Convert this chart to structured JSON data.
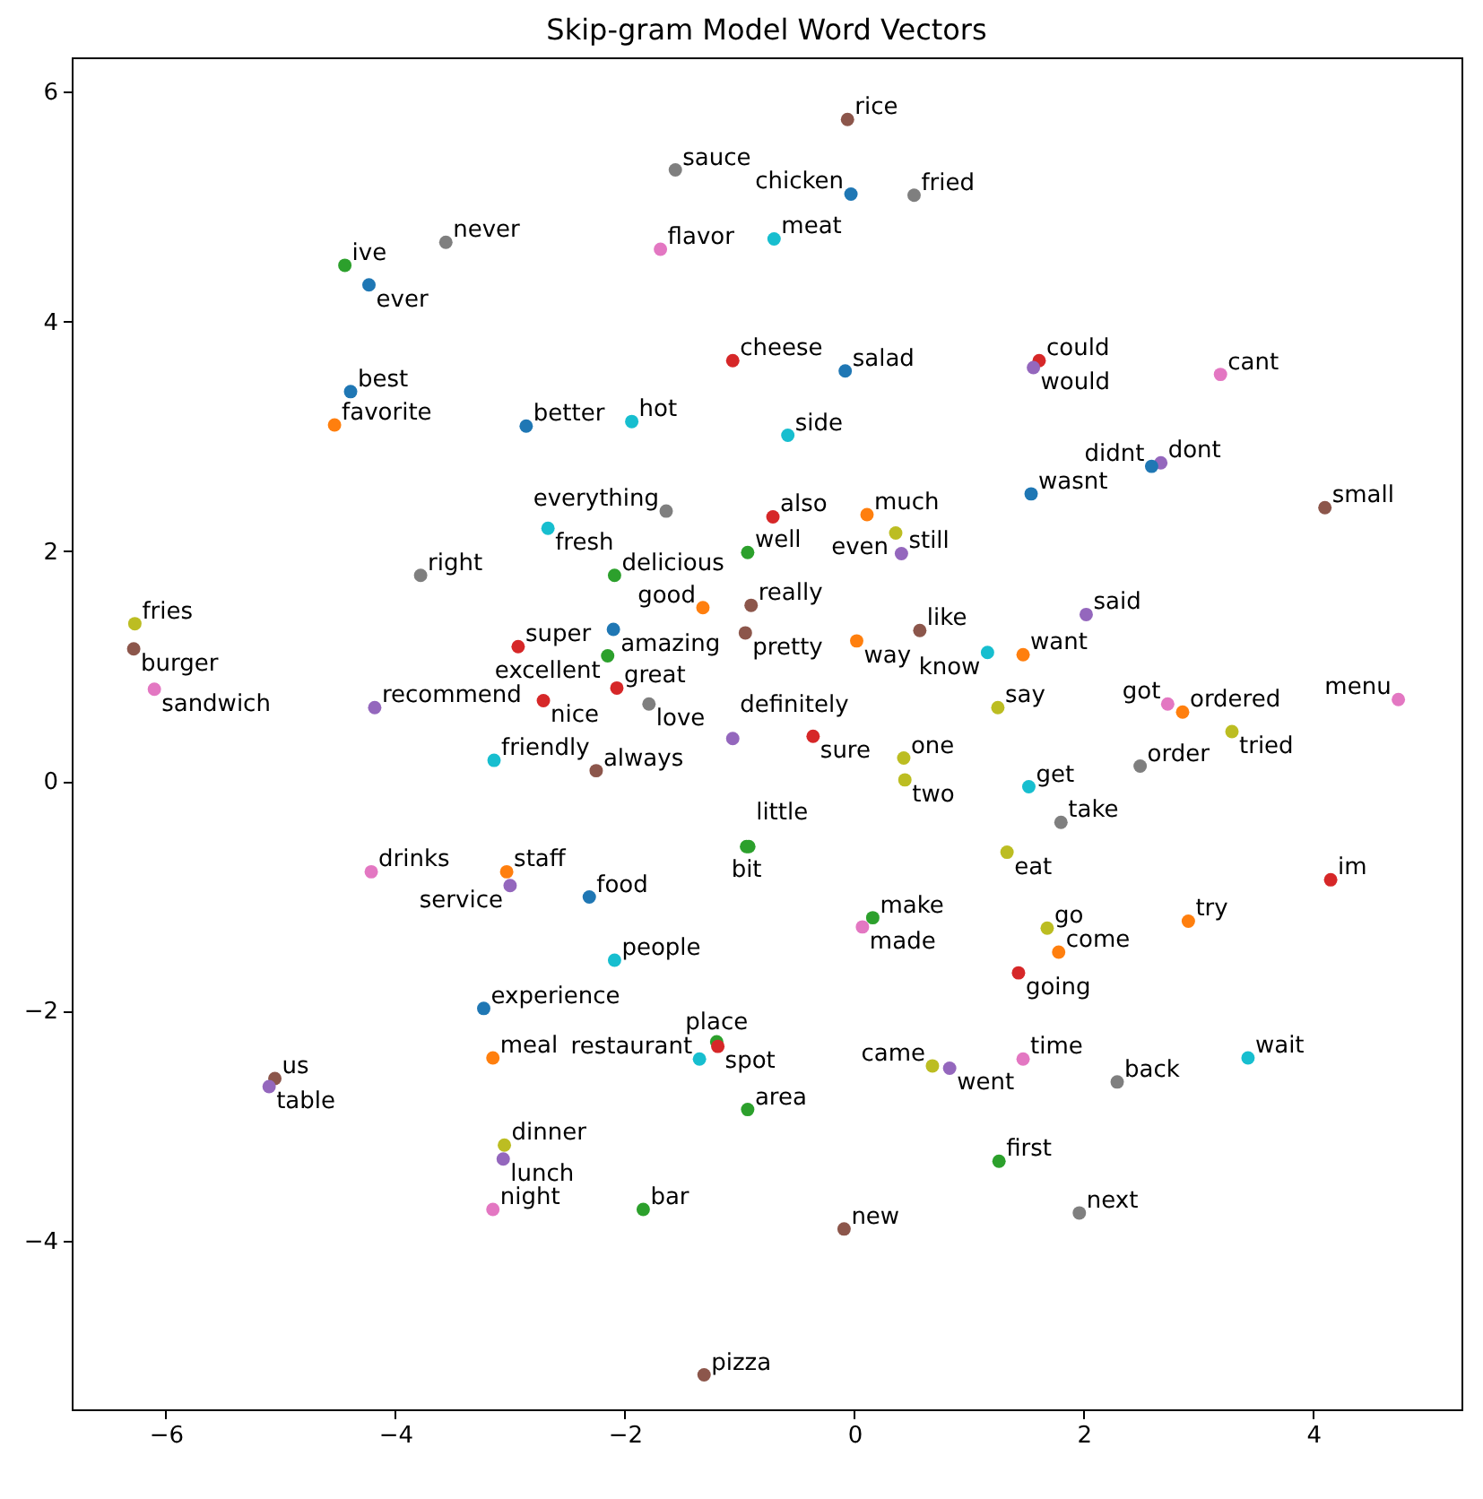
{
  "chart_data": {
    "type": "scatter",
    "title": "Skip-gram Model Word Vectors",
    "x": [
      -0.06,
      -1.56,
      -0.03,
      0.52,
      -3.56,
      -0.7,
      -1.69,
      -4.44,
      -4.23,
      -1.06,
      -0.08,
      1.61,
      1.56,
      3.19,
      -4.39,
      -4.53,
      -2.86,
      -1.94,
      -0.58,
      2.67,
      2.59,
      1.54,
      4.1,
      -1.64,
      -0.71,
      0.11,
      0.36,
      0.41,
      -2.67,
      -0.93,
      -3.78,
      -2.09,
      -1.32,
      -0.9,
      -0.95,
      -2.1,
      -2.15,
      -2.93,
      0.02,
      0.57,
      1.16,
      1.47,
      2.02,
      -6.27,
      -6.28,
      -6.1,
      -4.18,
      -2.71,
      -2.07,
      -1.79,
      1.25,
      2.73,
      2.86,
      4.74,
      3.29,
      -3.14,
      -2.25,
      -1.06,
      -0.36,
      0.43,
      0.44,
      2.49,
      1.52,
      1.8,
      1.33,
      -0.94,
      -0.92,
      -4.21,
      -3.03,
      -3.0,
      -2.31,
      0.16,
      0.07,
      1.68,
      1.78,
      1.43,
      2.91,
      4.15,
      -2.09,
      -3.23,
      -3.15,
      -1.2,
      -1.19,
      -1.35,
      -0.93,
      0.68,
      0.83,
      1.47,
      2.29,
      3.43,
      -5.05,
      -5.1,
      -3.05,
      -3.06,
      -3.15,
      -1.84,
      -0.09,
      1.26,
      1.96,
      -1.31
    ],
    "values": [
      5.76,
      5.32,
      5.11,
      5.1,
      4.69,
      4.72,
      4.63,
      4.49,
      4.32,
      3.66,
      3.57,
      3.66,
      3.6,
      3.54,
      3.39,
      3.1,
      3.09,
      3.13,
      3.01,
      2.77,
      2.74,
      2.5,
      2.38,
      2.35,
      2.3,
      2.32,
      2.16,
      1.98,
      2.2,
      1.99,
      1.79,
      1.79,
      1.51,
      1.53,
      1.29,
      1.32,
      1.09,
      1.17,
      1.22,
      1.31,
      1.12,
      1.1,
      1.45,
      1.37,
      1.15,
      0.8,
      0.64,
      0.7,
      0.81,
      0.67,
      0.64,
      0.67,
      0.6,
      0.71,
      0.43,
      0.18,
      0.09,
      0.37,
      0.39,
      0.2,
      0.01,
      0.13,
      -0.05,
      -0.36,
      -0.62,
      -0.57,
      -0.57,
      -0.79,
      -0.79,
      -0.91,
      -1.01,
      -1.19,
      -1.27,
      -1.28,
      -1.49,
      -1.67,
      -1.22,
      -0.86,
      -1.56,
      -1.98,
      -2.41,
      -2.27,
      -2.31,
      -2.42,
      -2.86,
      -2.48,
      -2.5,
      -2.42,
      -2.62,
      -2.41,
      -2.59,
      -2.66,
      -3.17,
      -3.29,
      -3.73,
      -3.73,
      -3.9,
      -3.31,
      -3.76,
      -5.17
    ],
    "value_labels": [
      "rice",
      "sauce",
      "chicken",
      "fried",
      "never",
      "meat",
      "flavor",
      "ive",
      "ever",
      "cheese",
      "salad",
      "could",
      "would",
      "cant",
      "best",
      "favorite",
      "better",
      "hot",
      "side",
      "dont",
      "didnt",
      "wasnt",
      "small",
      "everything",
      "also",
      "much",
      "even",
      "still",
      "fresh",
      "well",
      "right",
      "delicious",
      "good",
      "really",
      "pretty",
      "amazing",
      "excellent",
      "super",
      "way",
      "like",
      "know",
      "want",
      "said",
      "fries",
      "burger",
      "sandwich",
      "recommend",
      "nice",
      "great",
      "love",
      "say",
      "got",
      "ordered",
      "menu",
      "tried",
      "friendly",
      "always",
      "definitely",
      "sure",
      "one",
      "two",
      "order",
      "get",
      "take",
      "eat",
      "bit",
      "little",
      "drinks",
      "staff",
      "service",
      "food",
      "make",
      "made",
      "go",
      "come",
      "going",
      "try",
      "im",
      "people",
      "experience",
      "meal",
      "place",
      "spot",
      "restaurant",
      "area",
      "came",
      "went",
      "time",
      "back",
      "wait",
      "us",
      "table",
      "dinner",
      "lunch",
      "night",
      "bar",
      "new",
      "first",
      "next",
      "pizza"
    ],
    "colors": [
      "#8c564b",
      "#7f7f7f",
      "#1f77b4",
      "#7f7f7f",
      "#7f7f7f",
      "#17becf",
      "#e377c2",
      "#2ca02c",
      "#1f77b4",
      "#d62728",
      "#1f77b4",
      "#d62728",
      "#9467bd",
      "#e377c2",
      "#1f77b4",
      "#ff7f0e",
      "#1f77b4",
      "#17becf",
      "#17becf",
      "#9467bd",
      "#1f77b4",
      "#1f77b4",
      "#8c564b",
      "#7f7f7f",
      "#d62728",
      "#ff7f0e",
      "#bcbd22",
      "#9467bd",
      "#17becf",
      "#2ca02c",
      "#7f7f7f",
      "#2ca02c",
      "#ff7f0e",
      "#8c564b",
      "#8c564b",
      "#1f77b4",
      "#2ca02c",
      "#d62728",
      "#ff7f0e",
      "#8c564b",
      "#17becf",
      "#ff7f0e",
      "#9467bd",
      "#bcbd22",
      "#8c564b",
      "#e377c2",
      "#9467bd",
      "#d62728",
      "#d62728",
      "#7f7f7f",
      "#bcbd22",
      "#e377c2",
      "#ff7f0e",
      "#e377c2",
      "#bcbd22",
      "#17becf",
      "#8c564b",
      "#9467bd",
      "#d62728",
      "#bcbd22",
      "#bcbd22",
      "#7f7f7f",
      "#17becf",
      "#7f7f7f",
      "#bcbd22",
      "#2ca02c",
      "#2ca02c",
      "#e377c2",
      "#ff7f0e",
      "#9467bd",
      "#1f77b4",
      "#2ca02c",
      "#e377c2",
      "#bcbd22",
      "#ff7f0e",
      "#d62728",
      "#ff7f0e",
      "#d62728",
      "#17becf",
      "#1f77b4",
      "#ff7f0e",
      "#2ca02c",
      "#d62728",
      "#17becf",
      "#2ca02c",
      "#bcbd22",
      "#9467bd",
      "#e377c2",
      "#7f7f7f",
      "#17becf",
      "#8c564b",
      "#9467bd",
      "#bcbd22",
      "#9467bd",
      "#e377c2",
      "#2ca02c",
      "#8c564b",
      "#2ca02c",
      "#7f7f7f",
      "#8c564b"
    ],
    "xlim": [
      -6.82,
      5.29
    ],
    "ylim": [
      -5.47,
      6.3
    ],
    "xticks": [
      {
        "value": -6,
        "label": "−6"
      },
      {
        "value": -4,
        "label": "−4"
      },
      {
        "value": -2,
        "label": "−2"
      },
      0,
      2,
      4
    ],
    "yticks": [
      {
        "value": -4,
        "label": "−4"
      },
      {
        "value": -2,
        "label": "−2"
      },
      0,
      2,
      4,
      6
    ],
    "marker": "circle"
  }
}
